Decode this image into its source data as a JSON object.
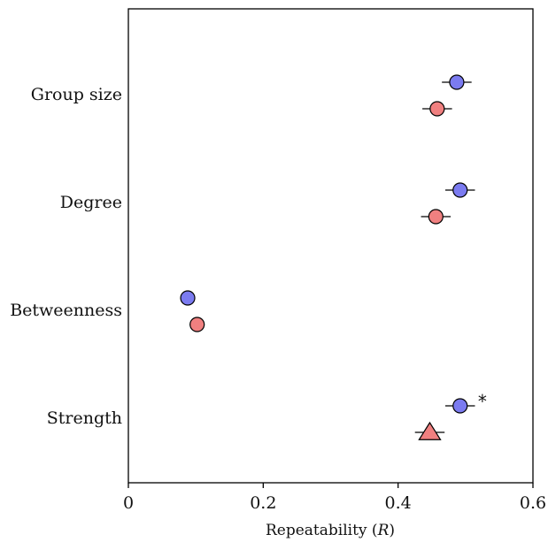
{
  "chart_data": {
    "type": "scatter",
    "orientation": "horizontal",
    "categories": [
      "Group size",
      "Degree",
      "Betweenness",
      "Strength"
    ],
    "xlabel_prefix": "Repeatability (",
    "xlabel_italic": "R",
    "xlabel_suffix": ")",
    "xlim": [
      0,
      0.6
    ],
    "xticks": [
      "0",
      "0.2",
      "0.4",
      "0.6"
    ],
    "grid": false,
    "legend": "none",
    "series": [
      {
        "color": "#7b7bf0",
        "marker": "circle",
        "points": [
          {
            "category": "Group size",
            "x": 0.487,
            "err": 0.022
          },
          {
            "category": "Degree",
            "x": 0.492,
            "err": 0.022
          },
          {
            "category": "Betweenness",
            "x": 0.088,
            "err": 0.011
          },
          {
            "category": "Strength",
            "x": 0.492,
            "err": 0.022
          }
        ]
      },
      {
        "color": "#f08080",
        "points": [
          {
            "category": "Group size",
            "x": 0.458,
            "err": 0.022,
            "marker": "circle"
          },
          {
            "category": "Degree",
            "x": 0.456,
            "err": 0.022,
            "marker": "circle"
          },
          {
            "category": "Betweenness",
            "x": 0.102,
            "err": 0.011,
            "marker": "circle"
          },
          {
            "category": "Strength",
            "x": 0.447,
            "err": 0.022,
            "marker": "triangle"
          }
        ]
      }
    ],
    "annotations": [
      {
        "text": "*",
        "category": "Strength",
        "x": 0.525
      }
    ]
  }
}
